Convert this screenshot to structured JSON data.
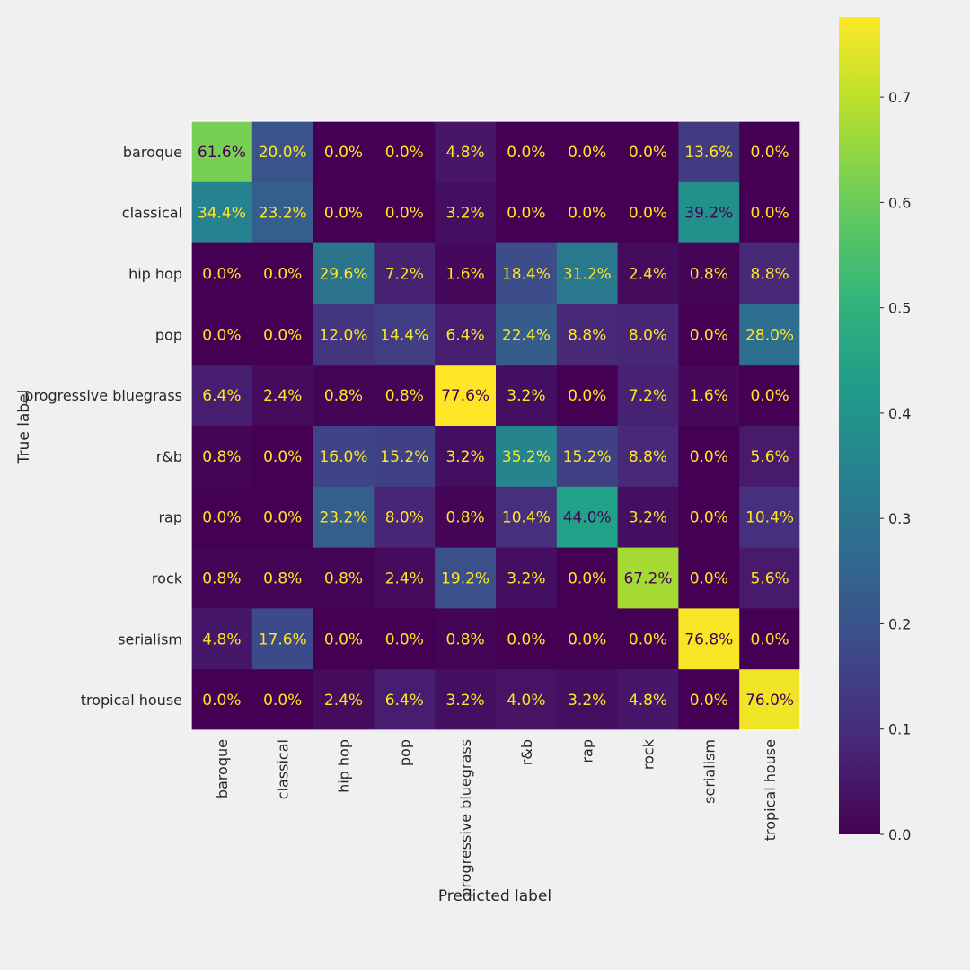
{
  "chart_data": {
    "type": "heatmap",
    "title": "",
    "xlabel": "Predicted label",
    "ylabel": "True label",
    "row_labels": [
      "baroque",
      "classical",
      "hip hop",
      "pop",
      "progressive bluegrass",
      "r&b",
      "rap",
      "rock",
      "serialism",
      "tropical house"
    ],
    "col_labels": [
      "baroque",
      "classical",
      "hip hop",
      "pop",
      "progressive bluegrass",
      "r&b",
      "rap",
      "rock",
      "serialism",
      "tropical house"
    ],
    "values": [
      [
        0.616,
        0.2,
        0.0,
        0.0,
        0.048,
        0.0,
        0.0,
        0.0,
        0.136,
        0.0
      ],
      [
        0.344,
        0.232,
        0.0,
        0.0,
        0.032,
        0.0,
        0.0,
        0.0,
        0.392,
        0.0
      ],
      [
        0.0,
        0.0,
        0.296,
        0.072,
        0.016,
        0.184,
        0.312,
        0.024,
        0.008,
        0.088
      ],
      [
        0.0,
        0.0,
        0.12,
        0.144,
        0.064,
        0.224,
        0.088,
        0.08,
        0.0,
        0.28
      ],
      [
        0.064,
        0.024,
        0.008,
        0.008,
        0.776,
        0.032,
        0.0,
        0.072,
        0.016,
        0.0
      ],
      [
        0.008,
        0.0,
        0.16,
        0.152,
        0.032,
        0.352,
        0.152,
        0.088,
        0.0,
        0.056
      ],
      [
        0.0,
        0.0,
        0.232,
        0.08,
        0.008,
        0.104,
        0.44,
        0.032,
        0.0,
        0.104
      ],
      [
        0.008,
        0.008,
        0.008,
        0.024,
        0.192,
        0.032,
        0.0,
        0.672,
        0.0,
        0.056
      ],
      [
        0.048,
        0.176,
        0.0,
        0.0,
        0.008,
        0.0,
        0.0,
        0.0,
        0.768,
        0.0
      ],
      [
        0.0,
        0.0,
        0.024,
        0.064,
        0.032,
        0.04,
        0.032,
        0.048,
        0.0,
        0.76
      ]
    ],
    "cell_labels": [
      [
        "61.6%",
        "20.0%",
        "0.0%",
        "0.0%",
        "4.8%",
        "0.0%",
        "0.0%",
        "0.0%",
        "13.6%",
        "0.0%"
      ],
      [
        "34.4%",
        "23.2%",
        "0.0%",
        "0.0%",
        "3.2%",
        "0.0%",
        "0.0%",
        "0.0%",
        "39.2%",
        "0.0%"
      ],
      [
        "0.0%",
        "0.0%",
        "29.6%",
        "7.2%",
        "1.6%",
        "18.4%",
        "31.2%",
        "2.4%",
        "0.8%",
        "8.8%"
      ],
      [
        "0.0%",
        "0.0%",
        "12.0%",
        "14.4%",
        "6.4%",
        "22.4%",
        "8.8%",
        "8.0%",
        "0.0%",
        "28.0%"
      ],
      [
        "6.4%",
        "2.4%",
        "0.8%",
        "0.8%",
        "77.6%",
        "3.2%",
        "0.0%",
        "7.2%",
        "1.6%",
        "0.0%"
      ],
      [
        "0.8%",
        "0.0%",
        "16.0%",
        "15.2%",
        "3.2%",
        "35.2%",
        "15.2%",
        "8.8%",
        "0.0%",
        "5.6%"
      ],
      [
        "0.0%",
        "0.0%",
        "23.2%",
        "8.0%",
        "0.8%",
        "10.4%",
        "44.0%",
        "3.2%",
        "0.0%",
        "10.4%"
      ],
      [
        "0.8%",
        "0.8%",
        "0.8%",
        "2.4%",
        "19.2%",
        "3.2%",
        "0.0%",
        "67.2%",
        "0.0%",
        "5.6%"
      ],
      [
        "4.8%",
        "17.6%",
        "0.0%",
        "0.0%",
        "0.8%",
        "0.0%",
        "0.0%",
        "0.0%",
        "76.8%",
        "0.0%"
      ],
      [
        "0.0%",
        "0.0%",
        "2.4%",
        "6.4%",
        "3.2%",
        "4.0%",
        "3.2%",
        "4.8%",
        "0.0%",
        "76.0%"
      ]
    ],
    "colorbar": {
      "colormap": "viridis",
      "range": [
        0,
        0.776
      ],
      "ticks": [
        0.0,
        0.1,
        0.2,
        0.3,
        0.4,
        0.5,
        0.6,
        0.7
      ],
      "tick_labels": [
        "0.0",
        "0.1",
        "0.2",
        "0.3",
        "0.4",
        "0.5",
        "0.6",
        "0.7"
      ]
    },
    "text_colors": {
      "dark_cell_text": "#fde725",
      "light_cell_text": "#440154"
    },
    "grid": false
  }
}
